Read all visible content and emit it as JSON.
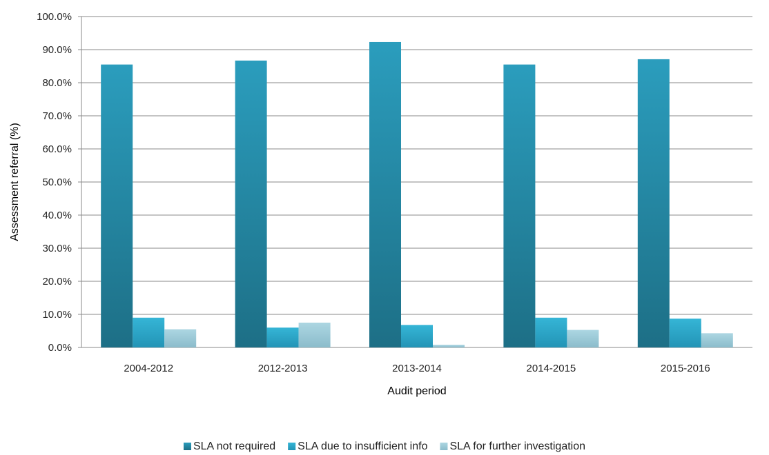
{
  "chart_data": {
    "type": "bar",
    "title": "",
    "xlabel": "Audit period",
    "ylabel": "Assessment referral  (%)",
    "categories": [
      "2004-2012",
      "2012-2013",
      "2013-2014",
      "2014-2015",
      "2015-2016"
    ],
    "series": [
      {
        "name": "SLA not required",
        "values": [
          85.5,
          86.7,
          92.3,
          85.5,
          87.1
        ],
        "color": "#2183a3"
      },
      {
        "name": "SLA due to insufficient info",
        "values": [
          9.0,
          6.0,
          6.8,
          9.0,
          8.7
        ],
        "color": "#2fa8cb"
      },
      {
        "name": "SLA for further investigation",
        "values": [
          5.5,
          7.5,
          0.8,
          5.3,
          4.3
        ],
        "color": "#9ccbd8"
      }
    ],
    "ylim": [
      0,
      100
    ],
    "yticks": [
      "0.0%",
      "10.0%",
      "20.0%",
      "30.0%",
      "40.0%",
      "50.0%",
      "60.0%",
      "70.0%",
      "80.0%",
      "90.0%",
      "100.0%"
    ],
    "grid": true,
    "legend_position": "bottom"
  }
}
